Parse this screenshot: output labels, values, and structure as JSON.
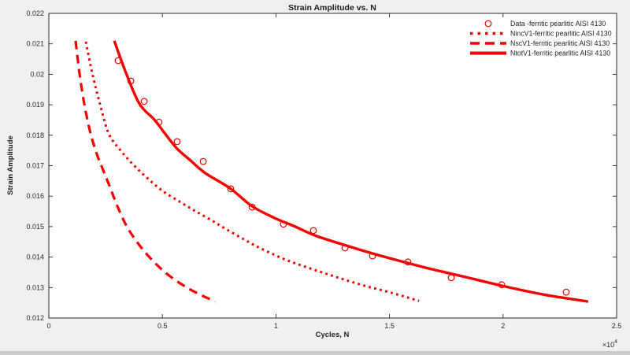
{
  "figure": {
    "background": "#f0f0f0",
    "plot_background": "#ffffff",
    "axis_color": "#262626",
    "text_color": "#1f1f1f",
    "accent_red": "#f40000",
    "bottom_strip_color": "#cbcbcb"
  },
  "chart_data": {
    "type": "line",
    "title": "Strain Amplitude vs. N",
    "xlabel": "Cycles, N",
    "ylabel": "Strain Amplitude",
    "xlim": [
      0,
      25000
    ],
    "ylim": [
      0.012,
      0.022
    ],
    "grid": false,
    "legend_position": "northeast",
    "x_ticks": {
      "values": [
        0,
        5000,
        10000,
        15000,
        20000,
        25000
      ],
      "labels": [
        "0",
        "0.5",
        "1",
        "1.5",
        "2",
        "2.5"
      ],
      "multiplier_base": "×10",
      "multiplier_exp": "4"
    },
    "y_ticks": {
      "values": [
        0.022,
        0.021,
        0.02,
        0.019,
        0.018,
        0.017,
        0.016,
        0.015,
        0.014,
        0.013,
        0.012
      ],
      "labels": [
        "0.022",
        "0.021",
        "0.02",
        "0.019",
        "0.018",
        "0.017",
        "0.016",
        "0.015",
        "0.014",
        "0.013",
        "0.012"
      ]
    },
    "series": [
      {
        "name": "Data -ferritic pearlitic AISI 4130",
        "type": "scatter",
        "marker": "circle",
        "color": "#f40000",
        "points": [
          [
            3050,
            0.02045
          ],
          [
            3610,
            0.01978
          ],
          [
            4200,
            0.01911
          ],
          [
            4850,
            0.01843
          ],
          [
            5650,
            0.01779
          ],
          [
            6800,
            0.01714
          ],
          [
            8010,
            0.01624
          ],
          [
            8950,
            0.01564
          ],
          [
            10330,
            0.01508
          ],
          [
            11650,
            0.01487
          ],
          [
            13040,
            0.0143
          ],
          [
            14250,
            0.01404
          ],
          [
            15810,
            0.01384
          ],
          [
            17720,
            0.01332
          ],
          [
            19940,
            0.01309
          ],
          [
            22780,
            0.01285
          ]
        ]
      },
      {
        "name": "NincV1-ferritic pearlitic AISI 4130",
        "type": "line",
        "style": "dotted",
        "color": "#f40000",
        "points": [
          [
            1630,
            0.02107
          ],
          [
            1910,
            0.02004
          ],
          [
            2250,
            0.01903
          ],
          [
            2640,
            0.01805
          ],
          [
            3160,
            0.0175
          ],
          [
            3750,
            0.01701
          ],
          [
            4370,
            0.01657
          ],
          [
            5030,
            0.01616
          ],
          [
            5760,
            0.01582
          ],
          [
            6450,
            0.01551
          ],
          [
            7180,
            0.0152
          ],
          [
            7870,
            0.01489
          ],
          [
            8600,
            0.01458
          ],
          [
            9290,
            0.0143
          ],
          [
            10440,
            0.01391
          ],
          [
            11620,
            0.0136
          ],
          [
            12760,
            0.01332
          ],
          [
            13900,
            0.01306
          ],
          [
            15080,
            0.01283
          ],
          [
            16300,
            0.01256
          ]
        ]
      },
      {
        "name": "NscV1-ferritic pearlitic AISI 4130",
        "type": "line",
        "style": "dashed",
        "color": "#f40000",
        "points": [
          [
            1180,
            0.0211
          ],
          [
            1350,
            0.02004
          ],
          [
            1560,
            0.01903
          ],
          [
            1840,
            0.01805
          ],
          [
            2120,
            0.01737
          ],
          [
            2390,
            0.01686
          ],
          [
            2670,
            0.01634
          ],
          [
            3020,
            0.01567
          ],
          [
            3500,
            0.01492
          ],
          [
            4260,
            0.01414
          ],
          [
            5200,
            0.01345
          ],
          [
            6240,
            0.01293
          ],
          [
            7320,
            0.01254
          ]
        ]
      },
      {
        "name": "NtotV1-ferritic pearlitic AISI 4130",
        "type": "line",
        "style": "solid",
        "color": "#f40000",
        "points": [
          [
            2880,
            0.0211
          ],
          [
            3400,
            0.02004
          ],
          [
            3990,
            0.01903
          ],
          [
            4650,
            0.01851
          ],
          [
            5100,
            0.01807
          ],
          [
            5620,
            0.01758
          ],
          [
            6240,
            0.01717
          ],
          [
            6900,
            0.01675
          ],
          [
            7980,
            0.01626
          ],
          [
            8950,
            0.01567
          ],
          [
            9950,
            0.01528
          ],
          [
            10850,
            0.015
          ],
          [
            11720,
            0.01471
          ],
          [
            13000,
            0.0144
          ],
          [
            14250,
            0.01412
          ],
          [
            15780,
            0.01381
          ],
          [
            16990,
            0.01358
          ],
          [
            18480,
            0.01332
          ],
          [
            19940,
            0.01306
          ],
          [
            21780,
            0.01277
          ],
          [
            23750,
            0.01254
          ]
        ]
      }
    ]
  }
}
